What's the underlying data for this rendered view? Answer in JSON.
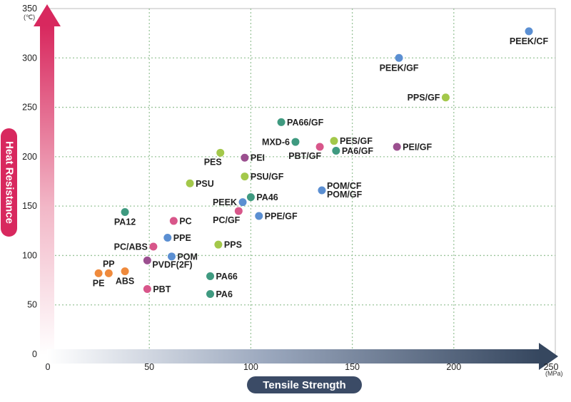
{
  "chart_data": {
    "type": "scatter",
    "xlabel": "Tensile Strength",
    "ylabel": "Heat Resistance",
    "x_unit": "(MPa)",
    "y_unit": "(℃)",
    "xlim": [
      0,
      250
    ],
    "ylim": [
      0,
      350
    ],
    "x_ticks": [
      0,
      50,
      100,
      150,
      200,
      250
    ],
    "y_ticks": [
      0,
      50,
      100,
      150,
      200,
      250,
      300,
      350
    ],
    "grid": true,
    "colors": {
      "blue": "#5b8fd2",
      "green": "#a3c84a",
      "teal": "#3f9a80",
      "purple": "#9b4f8f",
      "pink": "#d8568a",
      "orange": "#ef8a3c"
    },
    "points": [
      {
        "label": "PEEK/CF",
        "x": 237,
        "y": 327,
        "color": "blue",
        "label_pos": "below"
      },
      {
        "label": "PEEK/GF",
        "x": 173,
        "y": 300,
        "color": "blue",
        "label_pos": "below"
      },
      {
        "label": "PPS/GF",
        "x": 196,
        "y": 260,
        "color": "green",
        "label_pos": "left"
      },
      {
        "label": "PA66/GF",
        "x": 115,
        "y": 235,
        "color": "teal",
        "label_pos": "right"
      },
      {
        "label": "MXD-6",
        "x": 122,
        "y": 215,
        "color": "teal",
        "label_pos": "left"
      },
      {
        "label": "PES/GF",
        "x": 141,
        "y": 216,
        "color": "green",
        "label_pos": "right"
      },
      {
        "label": "PBT/GF",
        "x": 134,
        "y": 210,
        "color": "pink",
        "label_pos": "below-left"
      },
      {
        "label": "PA6/GF",
        "x": 142,
        "y": 206,
        "color": "teal",
        "label_pos": "right"
      },
      {
        "label": "PEI/GF",
        "x": 172,
        "y": 210,
        "color": "purple",
        "label_pos": "right"
      },
      {
        "label": "PES",
        "x": 85,
        "y": 204,
        "color": "green",
        "label_pos": "below-left"
      },
      {
        "label": "PEI",
        "x": 97,
        "y": 199,
        "color": "purple",
        "label_pos": "right"
      },
      {
        "label": "PSU/GF",
        "x": 97,
        "y": 180,
        "color": "green",
        "label_pos": "right"
      },
      {
        "label": "PSU",
        "x": 70,
        "y": 173,
        "color": "green",
        "label_pos": "right"
      },
      {
        "label": "POM/CF",
        "x": 135,
        "y": 166,
        "color": "blue",
        "label_pos": "above-right"
      },
      {
        "label": "POM/GF",
        "x": 135,
        "y": 166,
        "color": "blue",
        "label_pos": "below-right"
      },
      {
        "label": "PA46",
        "x": 100,
        "y": 159,
        "color": "teal",
        "label_pos": "right"
      },
      {
        "label": "PEEK",
        "x": 96,
        "y": 154,
        "color": "blue",
        "label_pos": "left"
      },
      {
        "label": "PA12",
        "x": 38,
        "y": 144,
        "color": "teal",
        "label_pos": "below"
      },
      {
        "label": "PC/GF",
        "x": 94,
        "y": 145,
        "color": "pink",
        "label_pos": "below-left"
      },
      {
        "label": "PPE/GF",
        "x": 104,
        "y": 140,
        "color": "blue",
        "label_pos": "right"
      },
      {
        "label": "PC",
        "x": 62,
        "y": 135,
        "color": "pink",
        "label_pos": "right"
      },
      {
        "label": "PPE",
        "x": 59,
        "y": 118,
        "color": "blue",
        "label_pos": "right"
      },
      {
        "label": "PPS",
        "x": 84,
        "y": 111,
        "color": "green",
        "label_pos": "right"
      },
      {
        "label": "PC/ABS",
        "x": 52,
        "y": 109,
        "color": "pink",
        "label_pos": "left"
      },
      {
        "label": "POM",
        "x": 61,
        "y": 99,
        "color": "blue",
        "label_pos": "right"
      },
      {
        "label": "PVDF(2F)",
        "x": 49,
        "y": 95,
        "color": "purple",
        "label_pos": "below-right"
      },
      {
        "label": "PP",
        "x": 30,
        "y": 82,
        "color": "orange",
        "label_pos": "above"
      },
      {
        "label": "PE",
        "x": 25,
        "y": 82,
        "color": "orange",
        "label_pos": "below"
      },
      {
        "label": "ABS",
        "x": 38,
        "y": 84,
        "color": "orange",
        "label_pos": "below"
      },
      {
        "label": "PA66",
        "x": 80,
        "y": 79,
        "color": "teal",
        "label_pos": "right"
      },
      {
        "label": "PBT",
        "x": 49,
        "y": 66,
        "color": "pink",
        "label_pos": "right"
      },
      {
        "label": "PA6",
        "x": 80,
        "y": 61,
        "color": "teal",
        "label_pos": "right"
      }
    ]
  }
}
